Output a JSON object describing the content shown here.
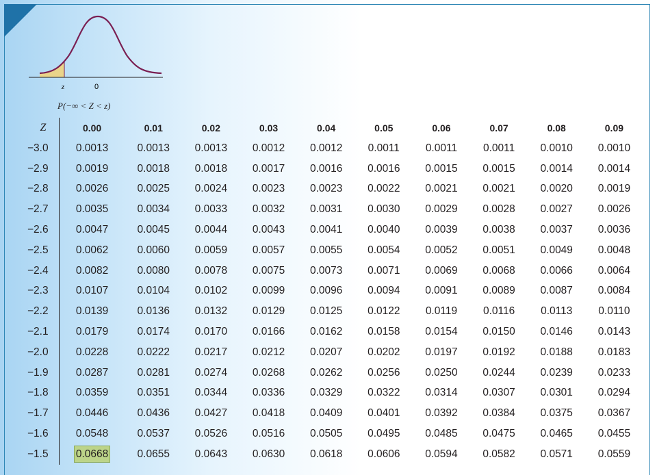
{
  "figure": {
    "z_label": "z",
    "zero_label": "0",
    "probability_label": "P(−∞ < Z < z)"
  },
  "table": {
    "z_header": "Z",
    "columns": [
      "0.00",
      "0.01",
      "0.02",
      "0.03",
      "0.04",
      "0.05",
      "0.06",
      "0.07",
      "0.08",
      "0.09"
    ],
    "rows": [
      {
        "z": "−3.0",
        "values": [
          "0.0013",
          "0.0013",
          "0.0013",
          "0.0012",
          "0.0012",
          "0.0011",
          "0.0011",
          "0.0011",
          "0.0010",
          "0.0010"
        ]
      },
      {
        "z": "−2.9",
        "values": [
          "0.0019",
          "0.0018",
          "0.0018",
          "0.0017",
          "0.0016",
          "0.0016",
          "0.0015",
          "0.0015",
          "0.0014",
          "0.0014"
        ]
      },
      {
        "z": "−2.8",
        "values": [
          "0.0026",
          "0.0025",
          "0.0024",
          "0.0023",
          "0.0023",
          "0.0022",
          "0.0021",
          "0.0021",
          "0.0020",
          "0.0019"
        ]
      },
      {
        "z": "−2.7",
        "values": [
          "0.0035",
          "0.0034",
          "0.0033",
          "0.0032",
          "0.0031",
          "0.0030",
          "0.0029",
          "0.0028",
          "0.0027",
          "0.0026"
        ]
      },
      {
        "z": "−2.6",
        "values": [
          "0.0047",
          "0.0045",
          "0.0044",
          "0.0043",
          "0.0041",
          "0.0040",
          "0.0039",
          "0.0038",
          "0.0037",
          "0.0036"
        ]
      },
      {
        "z": "−2.5",
        "values": [
          "0.0062",
          "0.0060",
          "0.0059",
          "0.0057",
          "0.0055",
          "0.0054",
          "0.0052",
          "0.0051",
          "0.0049",
          "0.0048"
        ]
      },
      {
        "z": "−2.4",
        "values": [
          "0.0082",
          "0.0080",
          "0.0078",
          "0.0075",
          "0.0073",
          "0.0071",
          "0.0069",
          "0.0068",
          "0.0066",
          "0.0064"
        ]
      },
      {
        "z": "−2.3",
        "values": [
          "0.0107",
          "0.0104",
          "0.0102",
          "0.0099",
          "0.0096",
          "0.0094",
          "0.0091",
          "0.0089",
          "0.0087",
          "0.0084"
        ]
      },
      {
        "z": "−2.2",
        "values": [
          "0.0139",
          "0.0136",
          "0.0132",
          "0.0129",
          "0.0125",
          "0.0122",
          "0.0119",
          "0.0116",
          "0.0113",
          "0.0110"
        ]
      },
      {
        "z": "−2.1",
        "values": [
          "0.0179",
          "0.0174",
          "0.0170",
          "0.0166",
          "0.0162",
          "0.0158",
          "0.0154",
          "0.0150",
          "0.0146",
          "0.0143"
        ]
      },
      {
        "z": "−2.0",
        "values": [
          "0.0228",
          "0.0222",
          "0.0217",
          "0.0212",
          "0.0207",
          "0.0202",
          "0.0197",
          "0.0192",
          "0.0188",
          "0.0183"
        ]
      },
      {
        "z": "−1.9",
        "values": [
          "0.0287",
          "0.0281",
          "0.0274",
          "0.0268",
          "0.0262",
          "0.0256",
          "0.0250",
          "0.0244",
          "0.0239",
          "0.0233"
        ]
      },
      {
        "z": "−1.8",
        "values": [
          "0.0359",
          "0.0351",
          "0.0344",
          "0.0336",
          "0.0329",
          "0.0322",
          "0.0314",
          "0.0307",
          "0.0301",
          "0.0294"
        ]
      },
      {
        "z": "−1.7",
        "values": [
          "0.0446",
          "0.0436",
          "0.0427",
          "0.0418",
          "0.0409",
          "0.0401",
          "0.0392",
          "0.0384",
          "0.0375",
          "0.0367"
        ]
      },
      {
        "z": "−1.6",
        "values": [
          "0.0548",
          "0.0537",
          "0.0526",
          "0.0516",
          "0.0505",
          "0.0495",
          "0.0485",
          "0.0475",
          "0.0465",
          "0.0455"
        ]
      },
      {
        "z": "−1.5",
        "values": [
          "0.0668",
          "0.0655",
          "0.0643",
          "0.0630",
          "0.0618",
          "0.0606",
          "0.0594",
          "0.0582",
          "0.0571",
          "0.0559"
        ]
      }
    ],
    "highlighted_value": "0.0668"
  },
  "colors": {
    "accent_blue": "#1f72a8",
    "curve": "#7a1f52",
    "shaded_area": "#ead48a",
    "highlight": "#bcd489"
  }
}
